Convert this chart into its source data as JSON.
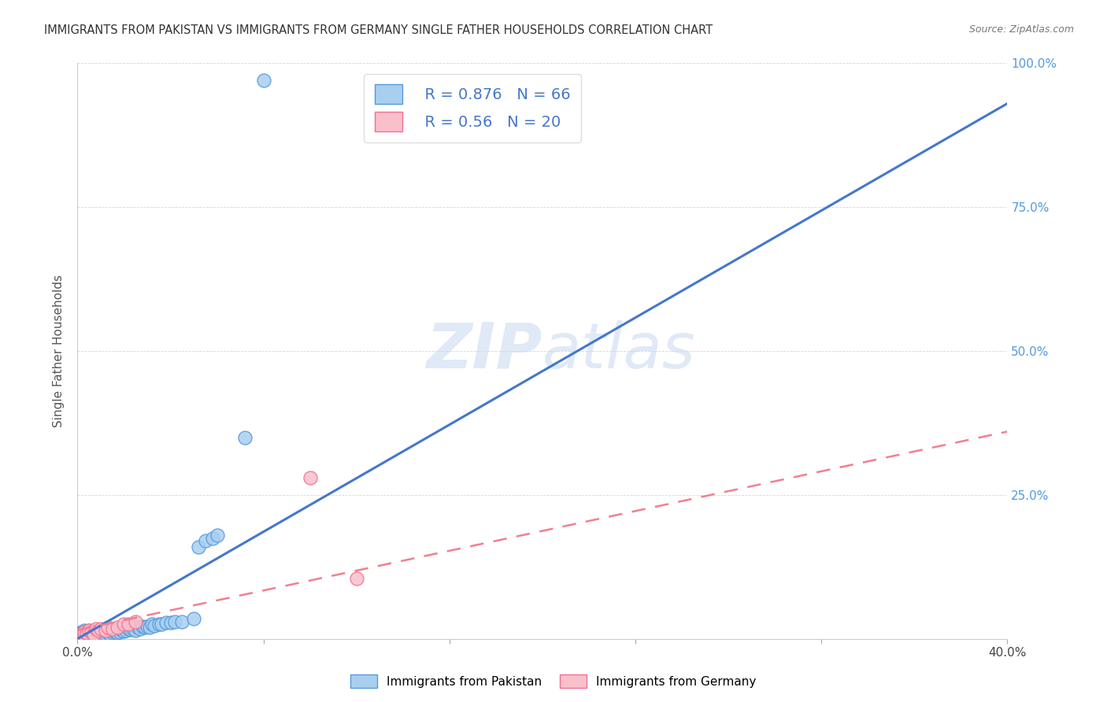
{
  "title": "IMMIGRANTS FROM PAKISTAN VS IMMIGRANTS FROM GERMANY SINGLE FATHER HOUSEHOLDS CORRELATION CHART",
  "source": "Source: ZipAtlas.com",
  "ylabel": "Single Father Households",
  "xlim": [
    0.0,
    0.4
  ],
  "ylim": [
    0.0,
    1.0
  ],
  "pakistan_R": 0.876,
  "pakistan_N": 66,
  "germany_R": 0.56,
  "germany_N": 20,
  "pakistan_color": "#a8cff0",
  "germany_color": "#f9c0cc",
  "pakistan_edge_color": "#5599dd",
  "germany_edge_color": "#f07090",
  "pakistan_line_color": "#4477cc",
  "germany_line_color": "#f08090",
  "tick_color_right": "#5599dd",
  "watermark_color": "#c8d8f0",
  "grid_color": "#cccccc",
  "title_color": "#333333",
  "source_color": "#777777",
  "pak_line_x0": 0.0,
  "pak_line_y0": 0.0,
  "pak_line_x1": 0.4,
  "pak_line_y1": 0.93,
  "ger_line_x0": 0.0,
  "ger_line_y0": 0.015,
  "ger_line_x1": 0.4,
  "ger_line_y1": 0.36,
  "pakistan_points_x": [
    0.001,
    0.001,
    0.002,
    0.002,
    0.002,
    0.003,
    0.003,
    0.003,
    0.003,
    0.004,
    0.004,
    0.004,
    0.005,
    0.005,
    0.005,
    0.005,
    0.006,
    0.006,
    0.006,
    0.007,
    0.007,
    0.007,
    0.008,
    0.008,
    0.009,
    0.009,
    0.01,
    0.01,
    0.011,
    0.011,
    0.012,
    0.013,
    0.014,
    0.015,
    0.015,
    0.016,
    0.017,
    0.018,
    0.019,
    0.02,
    0.021,
    0.022,
    0.023,
    0.024,
    0.025,
    0.026,
    0.027,
    0.028,
    0.029,
    0.03,
    0.031,
    0.032,
    0.033,
    0.035,
    0.036,
    0.038,
    0.04,
    0.042,
    0.045,
    0.05,
    0.052,
    0.055,
    0.058,
    0.06,
    0.072,
    0.08
  ],
  "pakistan_points_y": [
    0.005,
    0.01,
    0.004,
    0.008,
    0.012,
    0.005,
    0.008,
    0.011,
    0.015,
    0.005,
    0.009,
    0.013,
    0.004,
    0.007,
    0.011,
    0.015,
    0.005,
    0.009,
    0.013,
    0.005,
    0.008,
    0.012,
    0.005,
    0.01,
    0.005,
    0.01,
    0.006,
    0.011,
    0.006,
    0.012,
    0.008,
    0.01,
    0.008,
    0.01,
    0.015,
    0.012,
    0.01,
    0.012,
    0.015,
    0.013,
    0.015,
    0.018,
    0.016,
    0.018,
    0.015,
    0.02,
    0.018,
    0.022,
    0.02,
    0.022,
    0.02,
    0.025,
    0.023,
    0.025,
    0.025,
    0.028,
    0.028,
    0.03,
    0.03,
    0.035,
    0.16,
    0.17,
    0.175,
    0.18,
    0.35,
    0.97
  ],
  "germany_points_x": [
    0.001,
    0.002,
    0.003,
    0.003,
    0.004,
    0.005,
    0.006,
    0.007,
    0.008,
    0.009,
    0.01,
    0.012,
    0.013,
    0.015,
    0.017,
    0.02,
    0.022,
    0.025,
    0.1,
    0.12
  ],
  "germany_points_y": [
    0.005,
    0.008,
    0.006,
    0.012,
    0.01,
    0.015,
    0.012,
    0.008,
    0.018,
    0.015,
    0.018,
    0.015,
    0.02,
    0.018,
    0.02,
    0.025,
    0.025,
    0.03,
    0.28,
    0.105
  ]
}
